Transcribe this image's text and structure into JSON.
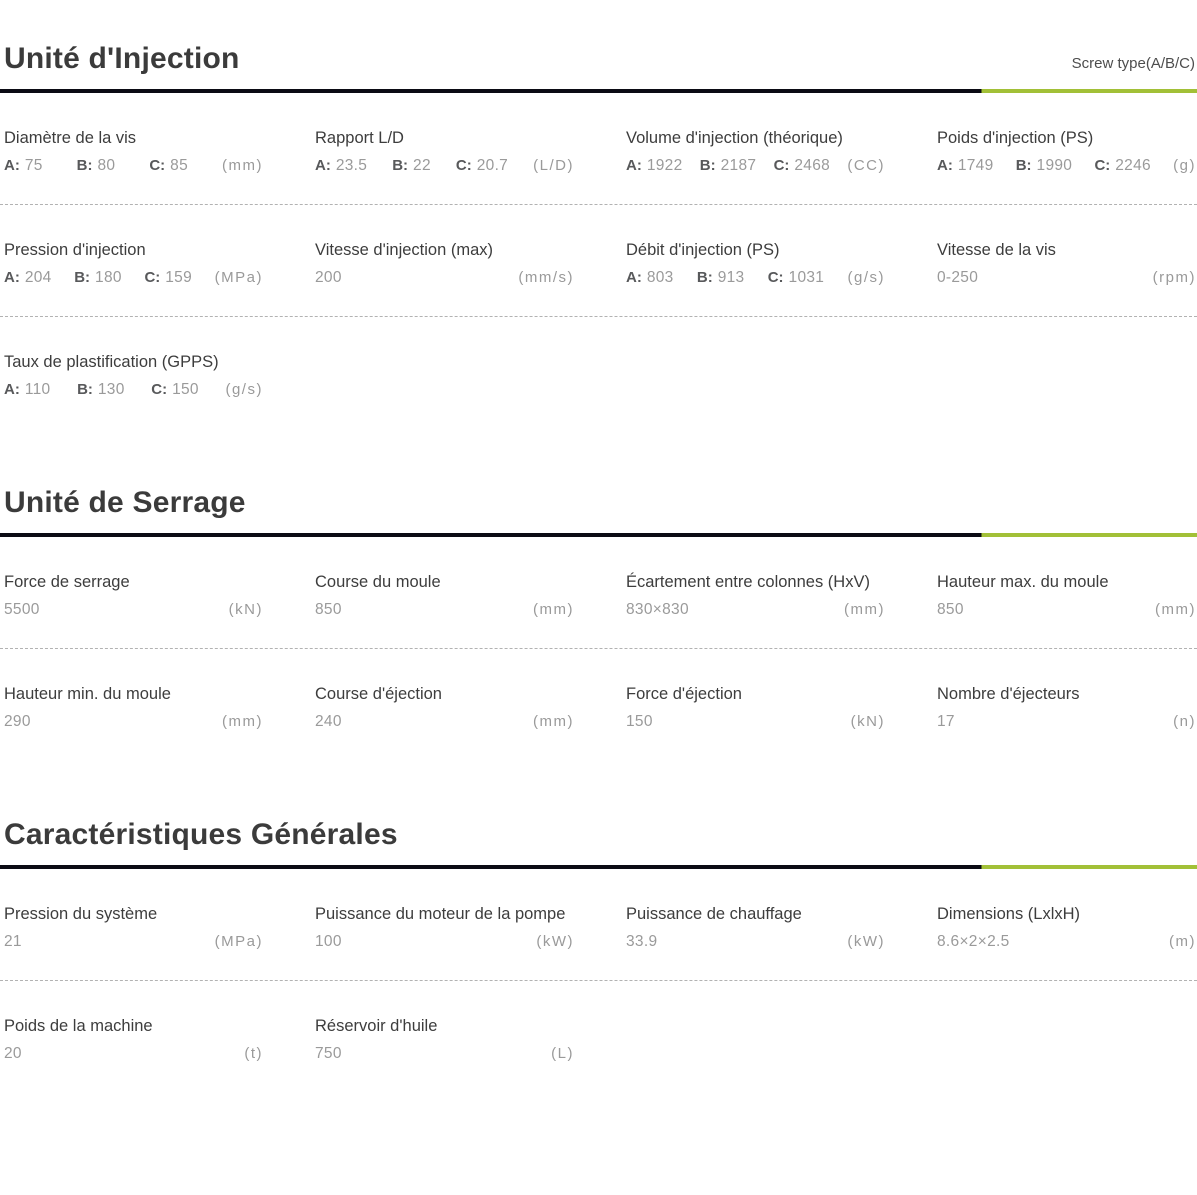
{
  "page": {
    "screw_note": "Screw type(A/B/C)",
    "colors": {
      "accent_green": "#a2c037",
      "rule_black": "#0b0b14",
      "label_text": "#3d3d3d",
      "value_text": "#9a9a9a",
      "variant_key_text": "#58595b",
      "divider": "#b2b2b2"
    }
  },
  "sections": [
    {
      "title": "Unité d'Injection",
      "rows": [
        {
          "cells": [
            {
              "label": "Diamètre de la vis",
              "unit": "(mm)",
              "abc": [
                {
                  "k": "A:",
                  "v": "75"
                },
                {
                  "k": "B:",
                  "v": "80"
                },
                {
                  "k": "C:",
                  "v": "85"
                }
              ]
            },
            {
              "label": "Rapport L/D",
              "unit": "(L/D)",
              "abc": [
                {
                  "k": "A:",
                  "v": "23.5"
                },
                {
                  "k": "B:",
                  "v": "22"
                },
                {
                  "k": "C:",
                  "v": "20.7"
                }
              ]
            },
            {
              "label": "Volume d'injection (théorique)",
              "unit": "(CC)",
              "abc": [
                {
                  "k": "A:",
                  "v": "1922"
                },
                {
                  "k": "B:",
                  "v": "2187"
                },
                {
                  "k": "C:",
                  "v": "2468"
                }
              ]
            },
            {
              "label": "Poids d'injection (PS)",
              "unit": "(g)",
              "abc": [
                {
                  "k": "A:",
                  "v": "1749"
                },
                {
                  "k": "B:",
                  "v": "1990"
                },
                {
                  "k": "C:",
                  "v": "2246"
                }
              ]
            }
          ]
        },
        {
          "cells": [
            {
              "label": "Pression d'injection",
              "unit": "(MPa)",
              "abc": [
                {
                  "k": "A:",
                  "v": "204"
                },
                {
                  "k": "B:",
                  "v": "180"
                },
                {
                  "k": "C:",
                  "v": "159"
                }
              ]
            },
            {
              "label": "Vitesse d'injection (max)",
              "unit": "(mm/s)",
              "value": "200"
            },
            {
              "label": "Débit d'injection (PS)",
              "unit": "(g/s)",
              "abc": [
                {
                  "k": "A:",
                  "v": "803"
                },
                {
                  "k": "B:",
                  "v": "913"
                },
                {
                  "k": "C:",
                  "v": "1031"
                }
              ]
            },
            {
              "label": "Vitesse de la vis",
              "unit": "(rpm)",
              "value": "0-250"
            }
          ]
        },
        {
          "cells": [
            {
              "label": "Taux de plastification (GPPS)",
              "unit": "(g/s)",
              "abc": [
                {
                  "k": "A:",
                  "v": "110"
                },
                {
                  "k": "B:",
                  "v": "130"
                },
                {
                  "k": "C:",
                  "v": "150"
                }
              ]
            }
          ]
        }
      ]
    },
    {
      "title": "Unité de Serrage",
      "rows": [
        {
          "cells": [
            {
              "label": "Force de serrage",
              "unit": "(kN)",
              "value": "5500"
            },
            {
              "label": "Course du moule",
              "unit": "(mm)",
              "value": "850"
            },
            {
              "label": "Écartement entre colonnes (HxV)",
              "unit": "(mm)",
              "value": "830×830"
            },
            {
              "label": "Hauteur max. du moule",
              "unit": "(mm)",
              "value": "850"
            }
          ]
        },
        {
          "cells": [
            {
              "label": "Hauteur min. du moule",
              "unit": "(mm)",
              "value": "290"
            },
            {
              "label": "Course d'éjection",
              "unit": "(mm)",
              "value": "240"
            },
            {
              "label": "Force d'éjection",
              "unit": "(kN)",
              "value": "150"
            },
            {
              "label": "Nombre d'éjecteurs",
              "unit": "(n)",
              "value": "17"
            }
          ]
        }
      ]
    },
    {
      "title": "Caractéristiques Générales",
      "rows": [
        {
          "cells": [
            {
              "label": "Pression du système",
              "unit": "(MPa)",
              "value": "21"
            },
            {
              "label": "Puissance du moteur de la pompe",
              "unit": "(kW)",
              "value": "100"
            },
            {
              "label": "Puissance de chauffage",
              "unit": "(kW)",
              "value": "33.9"
            },
            {
              "label": "Dimensions (LxlxH)",
              "unit": "(m)",
              "value": "8.6×2×2.5"
            }
          ]
        },
        {
          "cells": [
            {
              "label": "Poids de la machine",
              "unit": "(t)",
              "value": "20"
            },
            {
              "label": "Réservoir d'huile",
              "unit": "(L)",
              "value": "750"
            }
          ]
        }
      ]
    }
  ]
}
